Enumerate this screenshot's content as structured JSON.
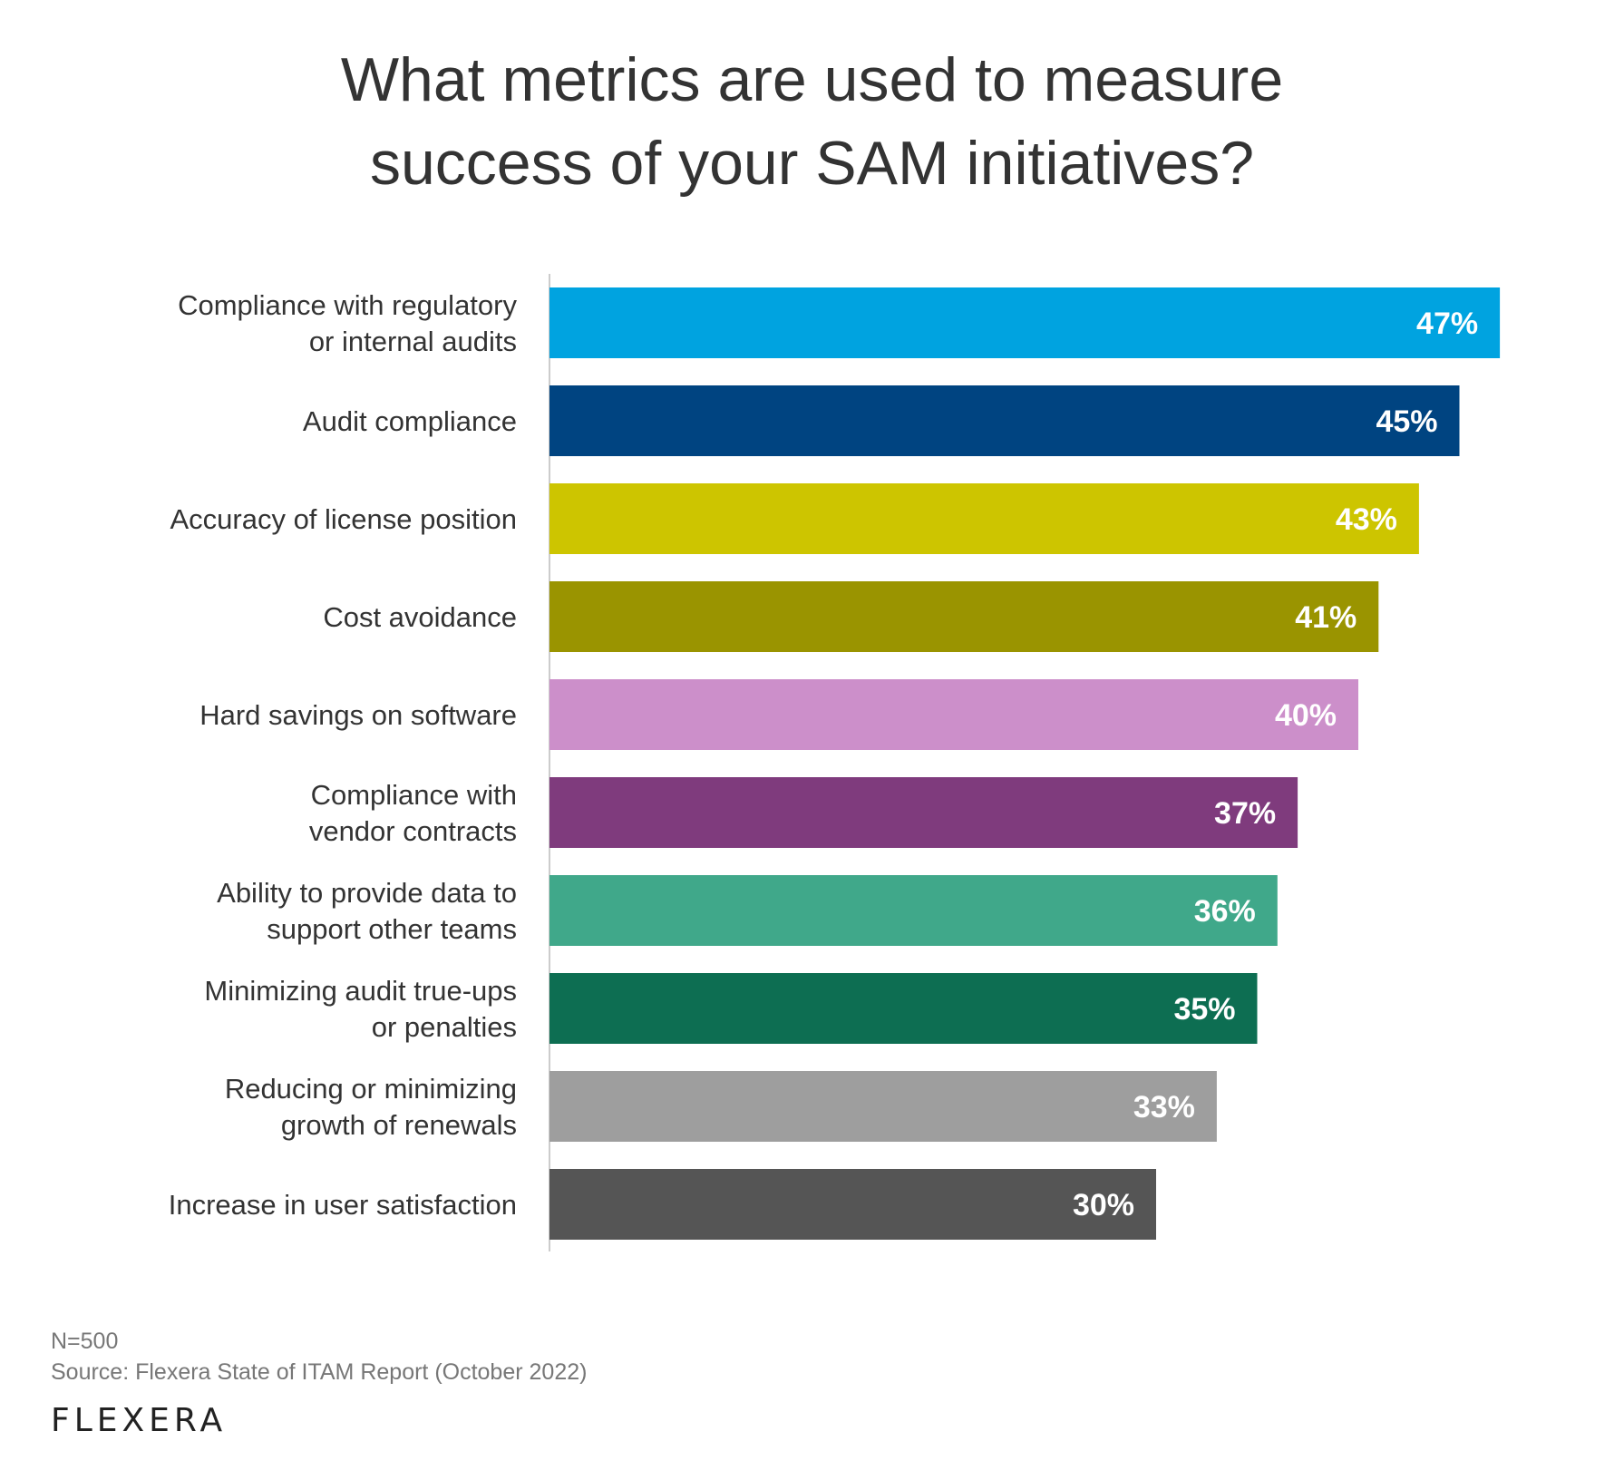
{
  "title": {
    "line1": "What metrics are used to measure",
    "line2": "success of your SAM initiatives?"
  },
  "chart_data": {
    "type": "bar",
    "orientation": "horizontal",
    "title": "What metrics are used to measure success of your SAM initiatives?",
    "xlim": [
      0,
      50
    ],
    "categories": [
      [
        "Compliance with regulatory",
        "or internal audits"
      ],
      [
        "Audit compliance"
      ],
      [
        "Accuracy of license position"
      ],
      [
        "Cost avoidance"
      ],
      [
        "Hard savings on software"
      ],
      [
        "Compliance with",
        "vendor contracts"
      ],
      [
        "Ability to provide data to",
        "support other teams"
      ],
      [
        "Minimizing audit true-ups",
        "or penalties"
      ],
      [
        "Reducing or minimizing",
        "growth of renewals"
      ],
      [
        "Increase in user satisfaction"
      ]
    ],
    "values": [
      47,
      45,
      43,
      41,
      40,
      37,
      36,
      35,
      33,
      30
    ],
    "value_labels": [
      "47%",
      "45%",
      "43%",
      "41%",
      "40%",
      "37%",
      "36%",
      "35%",
      "33%",
      "30%"
    ],
    "colors": [
      "#00a3e0",
      "#004481",
      "#cdc500",
      "#9a9400",
      "#cc8fca",
      "#7f3b7d",
      "#40a88a",
      "#0d6e52",
      "#9e9e9e",
      "#555555"
    ],
    "label_color": "#ffffff",
    "axis_color": "#bbbbbb"
  },
  "footer": {
    "n": "N=500",
    "source": "Source: Flexera State of ITAM Report (October 2022)"
  },
  "logo": {
    "text": "FLEXERA"
  }
}
